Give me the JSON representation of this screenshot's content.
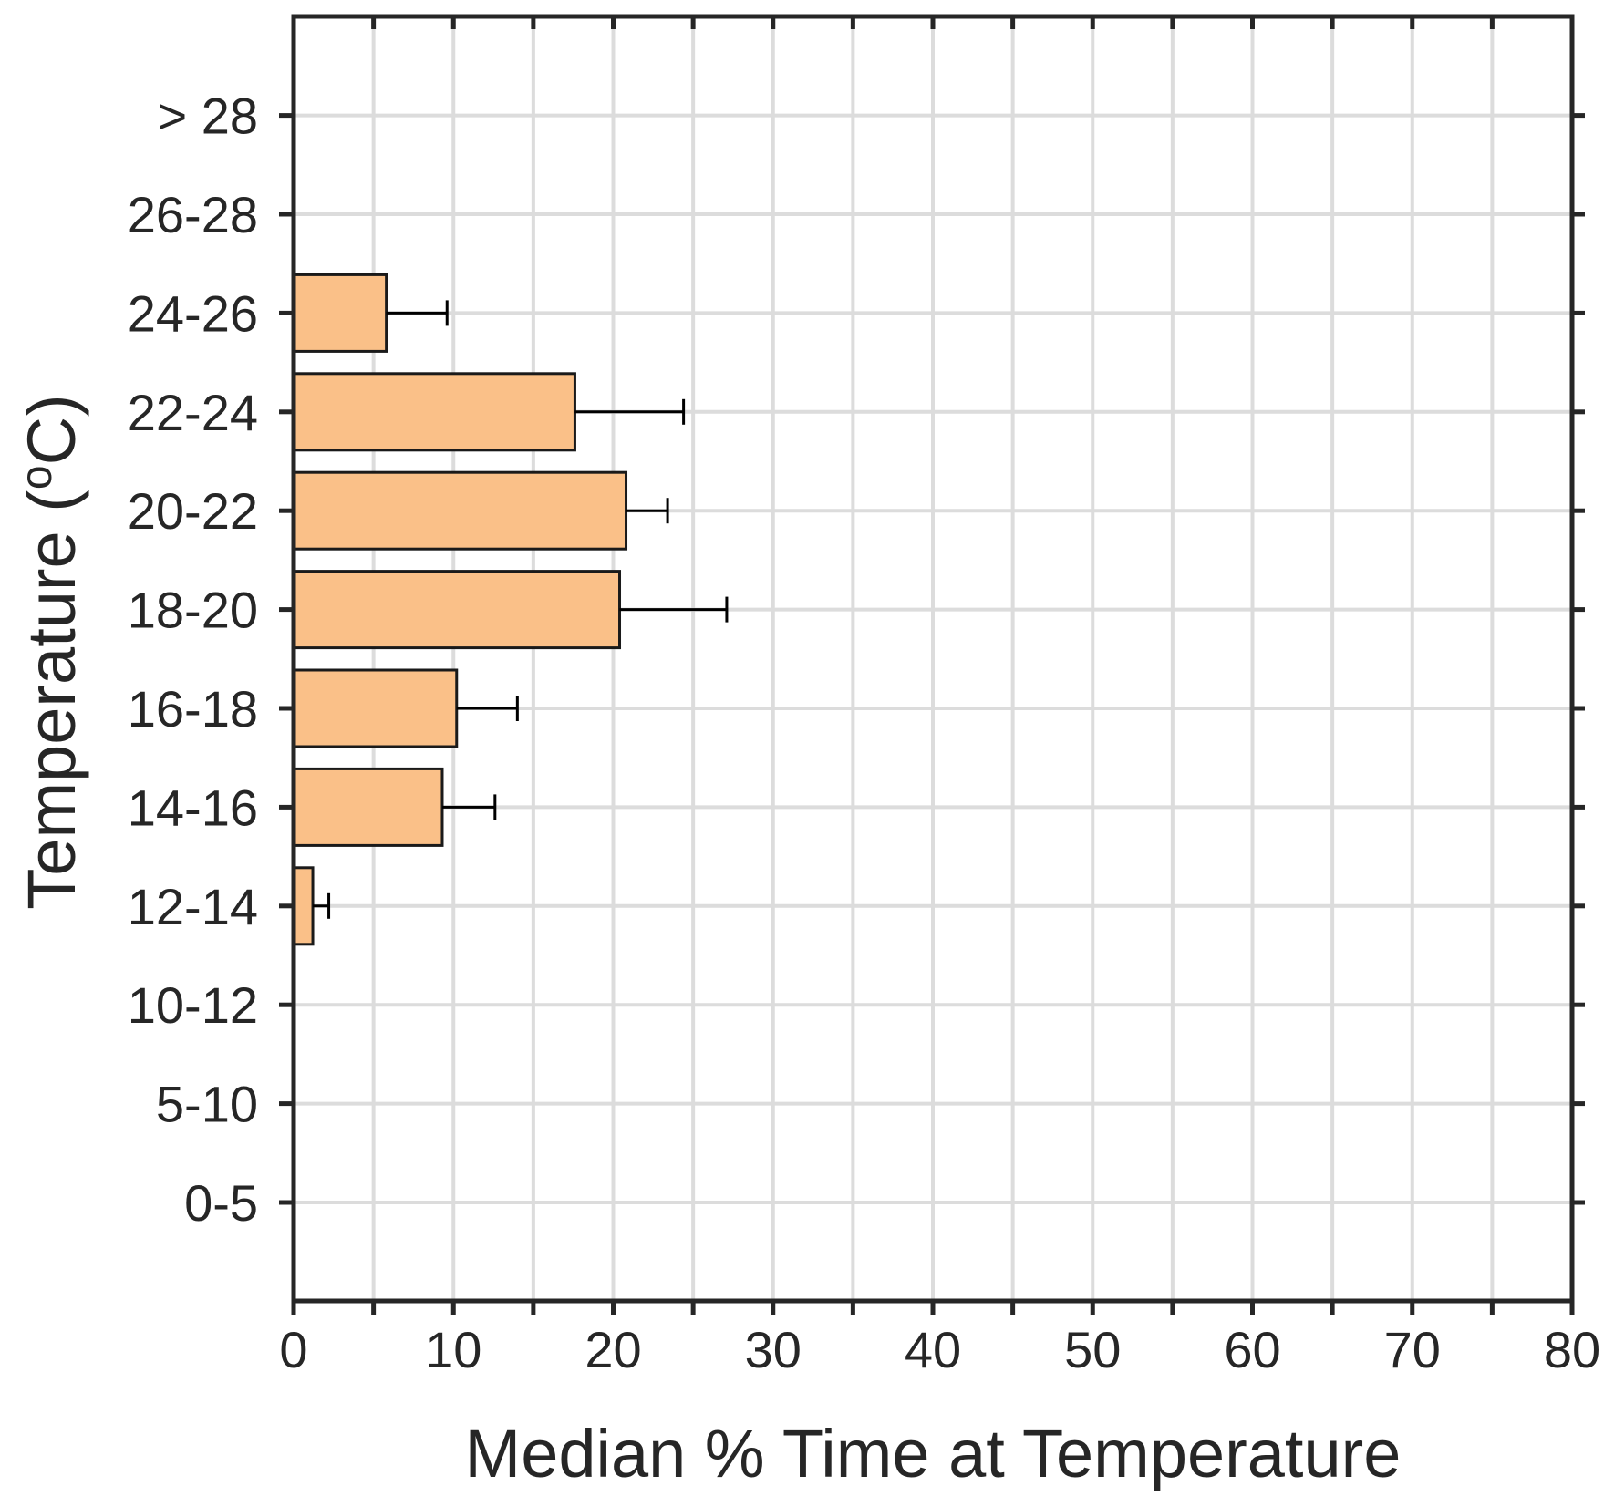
{
  "chart_data": {
    "type": "bar",
    "orientation": "horizontal",
    "categories": [
      "0-5",
      "5-10",
      "10-12",
      "12-14",
      "14-16",
      "16-18",
      "18-20",
      "20-22",
      "22-24",
      "24-26",
      "26-28",
      "> 28"
    ],
    "values": [
      0,
      0,
      0,
      1.2,
      9.3,
      10.2,
      20.4,
      20.8,
      17.6,
      5.8,
      0,
      0
    ],
    "errors": [
      0,
      0,
      0,
      1.0,
      3.3,
      3.8,
      6.7,
      2.6,
      6.8,
      3.8,
      0,
      0
    ],
    "xlabel": "Median % Time at Temperature",
    "ylabel_main": "Temperature (",
    "ylabel_sup": "o",
    "ylabel_end": "C)",
    "xlim": [
      0,
      80
    ],
    "xticks": [
      0,
      10,
      20,
      30,
      40,
      50,
      60,
      70,
      80
    ],
    "grid": true,
    "colors": {
      "bar_fill": "#fac088",
      "bar_edge": "#1a1a1a",
      "axis": "#262626",
      "grid": "#dcdcdc"
    }
  }
}
